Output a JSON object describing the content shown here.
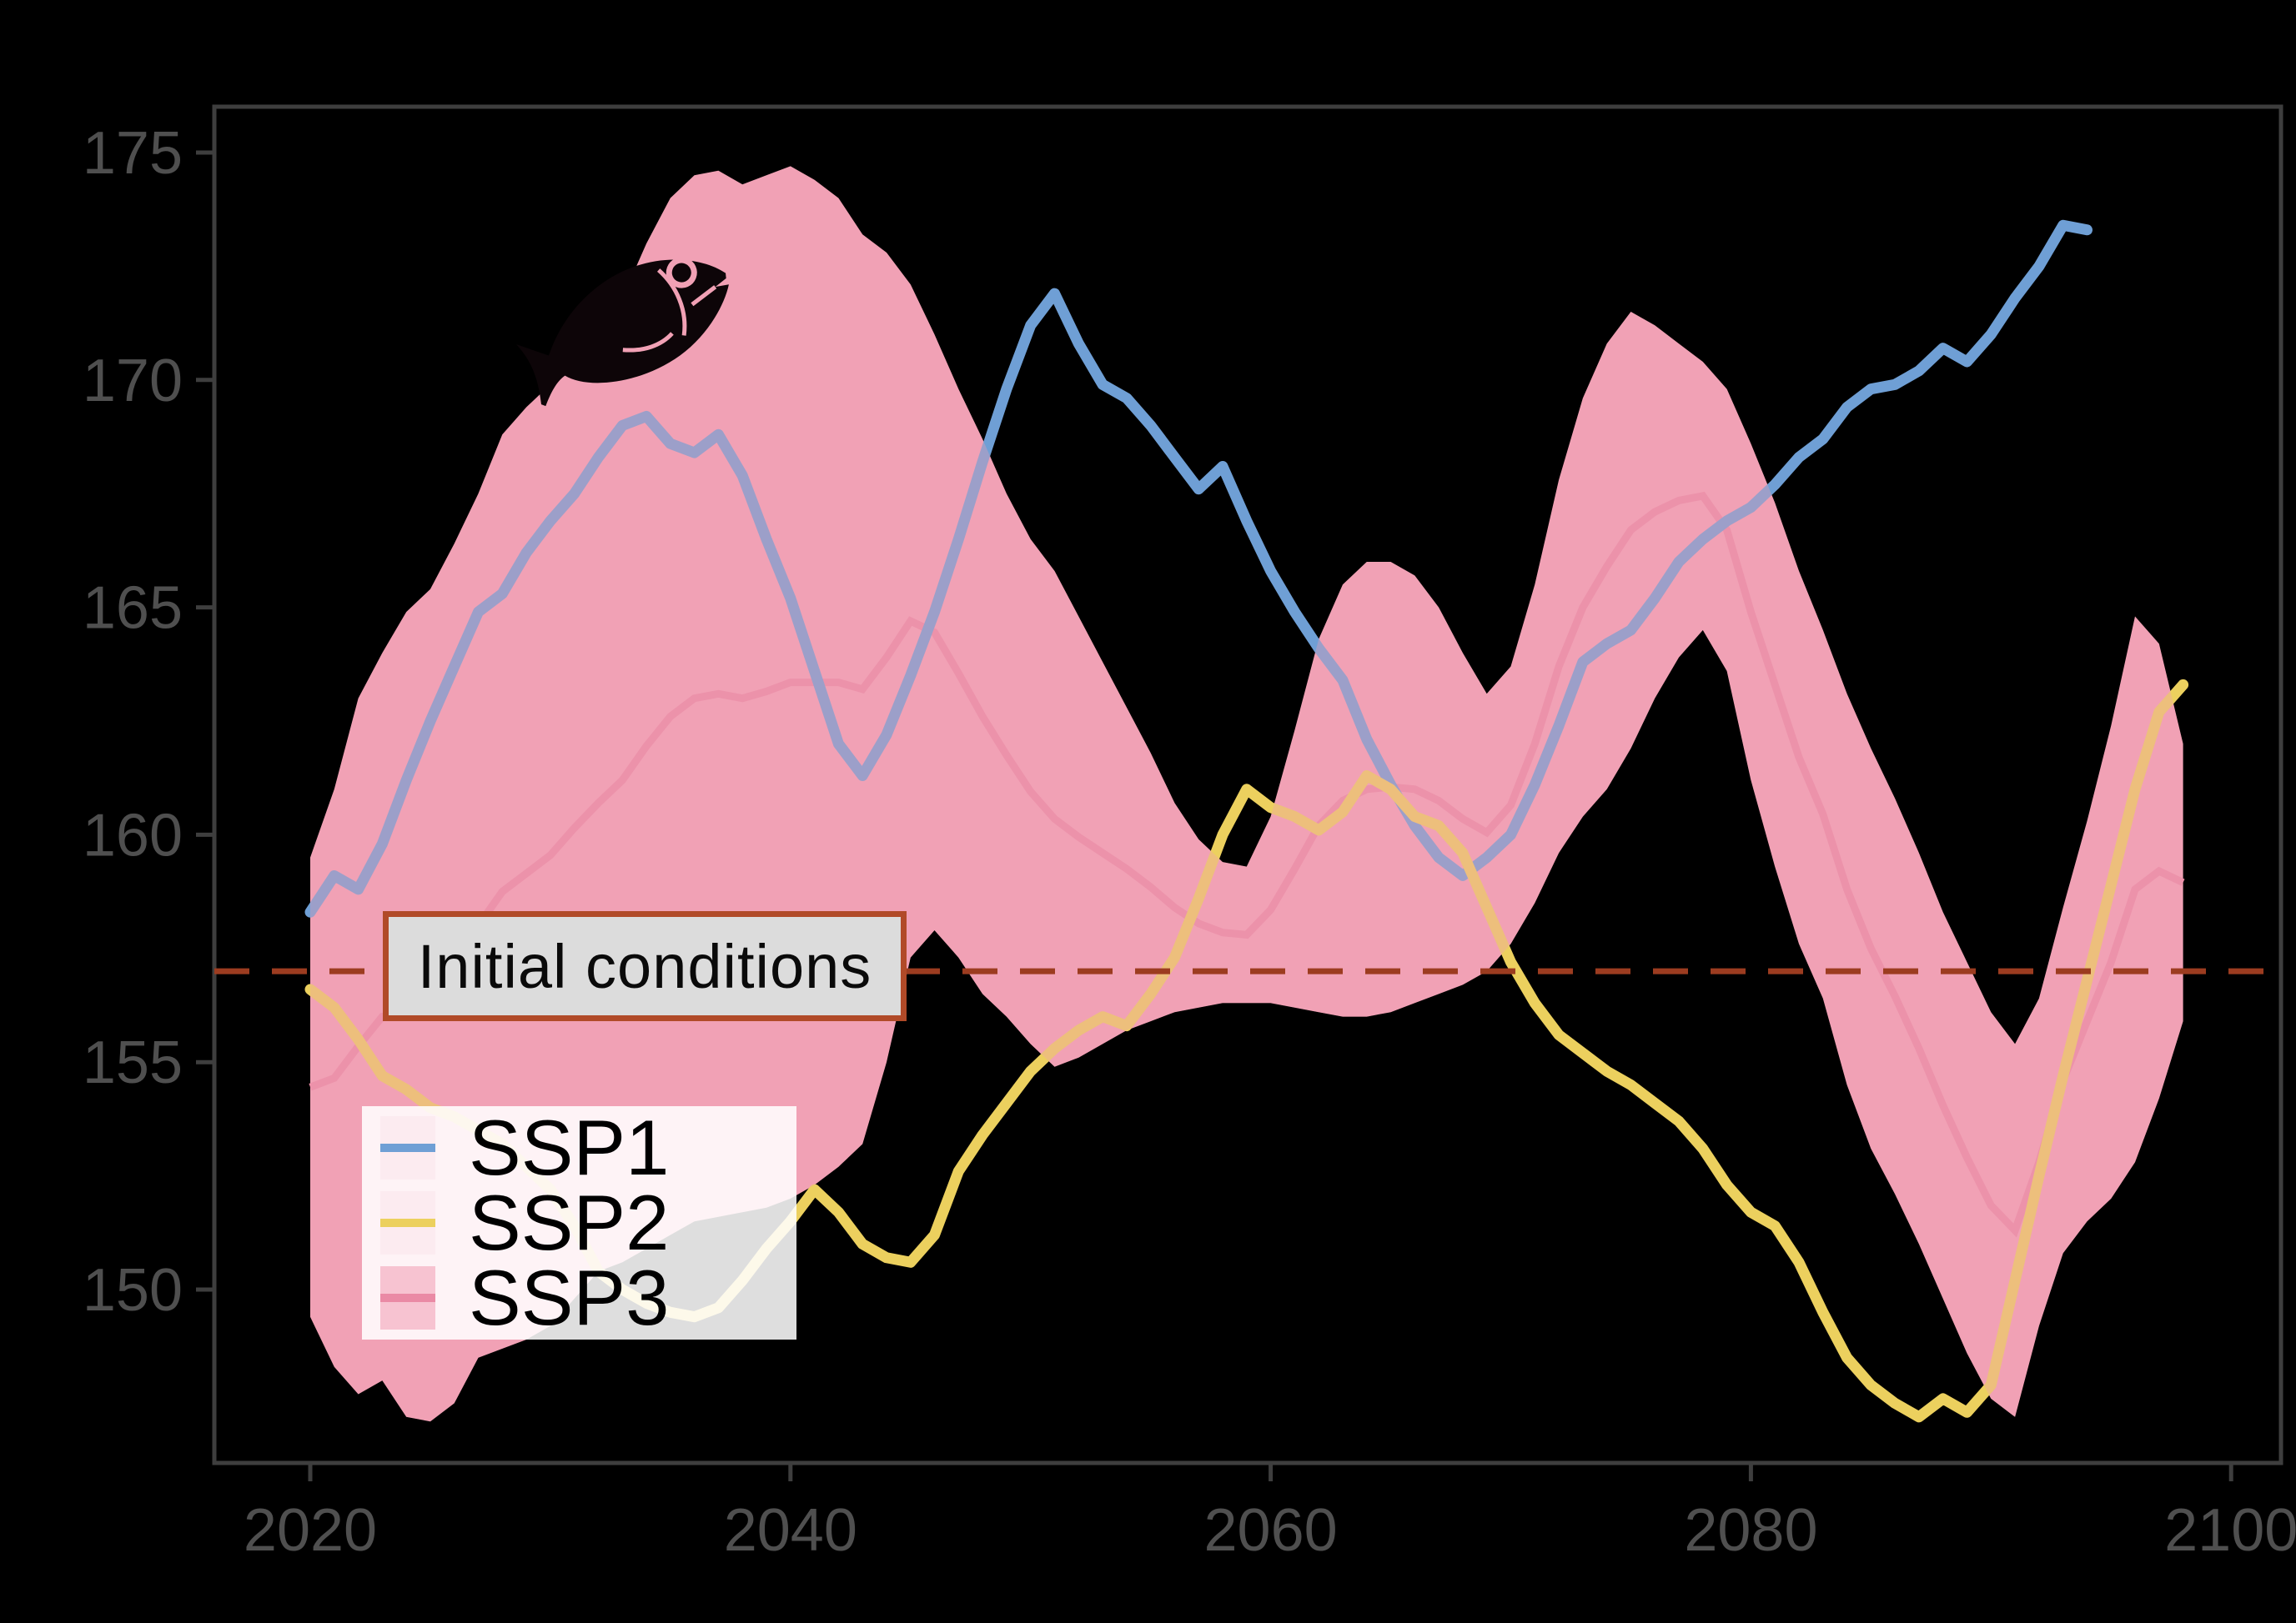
{
  "figure": {
    "background": "#000000",
    "panel_border_color": "#3e3e3e",
    "tick_color": "#3e3e3e",
    "tick_label_color": "#4f4f4f"
  },
  "axes": {
    "x_ticks": [
      2020,
      2040,
      2060,
      2080,
      2100
    ],
    "y_ticks": [
      150,
      155,
      160,
      165,
      170,
      175
    ]
  },
  "annotation": {
    "label": "Initial conditions",
    "value": 157,
    "line_color": "#9c3c20",
    "box_fill": "#dcdcdc",
    "box_border": "#b14a28"
  },
  "legend": {
    "entries": [
      {
        "label": "SSP1",
        "color": "#6f9fd5",
        "key_bg": "#fcebf0"
      },
      {
        "label": "SSP2",
        "color": "#ecd05e",
        "key_bg": "#fcebf0"
      },
      {
        "label": "SSP3",
        "color": "#ea8aa5",
        "key_bg": "#f7c3d1"
      }
    ]
  },
  "chart_data": {
    "type": "line",
    "title": "",
    "xlabel": "",
    "ylabel": "",
    "x_start": 2020,
    "x_step": 1,
    "xlim": [
      2016,
      2102
    ],
    "ylim": [
      146.2,
      176
    ],
    "grid": false,
    "legend_position": "inside-bottom-left",
    "ref_line": {
      "label": "Initial conditions",
      "value": 157,
      "style": "dashed"
    },
    "series": [
      {
        "name": "SSP1",
        "kind": "line",
        "color": "#6f9fd5",
        "values": [
          158.3,
          159.1,
          158.8,
          159.8,
          161.2,
          162.5,
          163.7,
          164.9,
          165.3,
          166.2,
          166.9,
          167.5,
          168.3,
          169.0,
          169.2,
          168.6,
          168.4,
          168.8,
          167.9,
          166.5,
          165.2,
          163.6,
          162.0,
          161.3,
          162.2,
          163.5,
          164.9,
          166.5,
          168.2,
          169.8,
          171.2,
          171.9,
          170.8,
          169.9,
          169.6,
          169.0,
          168.3,
          167.6,
          168.1,
          166.9,
          165.8,
          164.9,
          164.1,
          163.4,
          162.1,
          161.1,
          160.2,
          159.5,
          159.1,
          159.5,
          160.0,
          161.1,
          162.4,
          163.8,
          164.2,
          164.5,
          165.2,
          166.0,
          166.5,
          166.9,
          167.2,
          167.7,
          168.3,
          168.7,
          169.4,
          169.8,
          169.9,
          170.2,
          170.7,
          170.4,
          171.0,
          171.8,
          172.5,
          173.4,
          173.3
        ]
      },
      {
        "name": "SSP2",
        "kind": "line",
        "color": "#ecd05e",
        "values": [
          156.6,
          156.2,
          155.5,
          154.7,
          154.4,
          154.0,
          153.8,
          153.5,
          153.2,
          152.7,
          152.2,
          151.4,
          150.4,
          150.0,
          149.7,
          149.5,
          149.4,
          149.6,
          150.2,
          150.9,
          151.5,
          152.2,
          151.7,
          151.0,
          150.7,
          150.6,
          151.2,
          152.6,
          153.4,
          154.1,
          154.8,
          155.3,
          155.7,
          156.0,
          155.8,
          156.5,
          157.3,
          158.6,
          160.0,
          161.0,
          160.6,
          160.4,
          160.1,
          160.5,
          161.3,
          161.0,
          160.4,
          160.2,
          159.6,
          158.4,
          157.2,
          156.3,
          155.6,
          155.2,
          154.8,
          154.5,
          154.1,
          153.7,
          153.1,
          152.3,
          151.7,
          151.4,
          150.6,
          149.5,
          148.5,
          147.9,
          147.5,
          147.2,
          147.6,
          147.3,
          147.9,
          150.2,
          152.5,
          154.7,
          156.8,
          158.9,
          161.0,
          162.7,
          163.3
        ]
      },
      {
        "name": "SSP3",
        "kind": "band",
        "line_color": "#ea8aa5",
        "fill_color": "#f1a1b5",
        "upper": [
          159.5,
          161.0,
          163.0,
          164.0,
          164.9,
          165.4,
          166.4,
          167.5,
          168.8,
          169.4,
          169.9,
          170.5,
          171.0,
          171.8,
          173.0,
          174.0,
          174.5,
          174.6,
          174.3,
          174.5,
          174.7,
          174.4,
          174.0,
          173.2,
          172.8,
          172.1,
          171.0,
          169.8,
          168.7,
          167.5,
          166.5,
          165.8,
          164.8,
          163.8,
          162.8,
          161.8,
          160.7,
          159.9,
          159.4,
          159.3,
          160.4,
          162.3,
          164.3,
          165.5,
          166.0,
          166.0,
          165.7,
          165.0,
          164.0,
          163.1,
          163.7,
          165.5,
          167.8,
          169.6,
          170.8,
          171.5,
          171.2,
          170.8,
          170.4,
          169.8,
          168.6,
          167.3,
          165.8,
          164.5,
          163.1,
          161.9,
          160.8,
          159.6,
          158.3,
          157.2,
          156.1,
          155.4,
          156.4,
          158.4,
          160.3,
          162.4,
          164.8,
          164.2,
          162.0
        ],
        "lower": [
          149.4,
          148.3,
          147.7,
          148.0,
          147.2,
          147.1,
          147.5,
          148.5,
          148.7,
          148.9,
          149.2,
          149.8,
          150.4,
          150.6,
          150.9,
          151.2,
          151.5,
          151.6,
          151.7,
          151.8,
          152.0,
          152.3,
          152.7,
          153.2,
          155.0,
          157.3,
          157.9,
          157.3,
          156.5,
          156.0,
          155.4,
          154.9,
          155.1,
          155.4,
          155.7,
          155.9,
          156.1,
          156.2,
          156.3,
          156.3,
          156.3,
          156.2,
          156.1,
          156.0,
          156.0,
          156.1,
          156.3,
          156.5,
          156.7,
          157.0,
          157.6,
          158.5,
          159.6,
          160.4,
          161.0,
          161.9,
          163.0,
          163.9,
          164.5,
          163.6,
          161.2,
          159.3,
          157.6,
          156.4,
          154.5,
          153.1,
          152.1,
          151.0,
          149.8,
          148.6,
          147.6,
          147.2,
          149.2,
          150.8,
          151.5,
          152.0,
          152.8,
          154.2,
          155.9
        ]
      }
    ]
  }
}
